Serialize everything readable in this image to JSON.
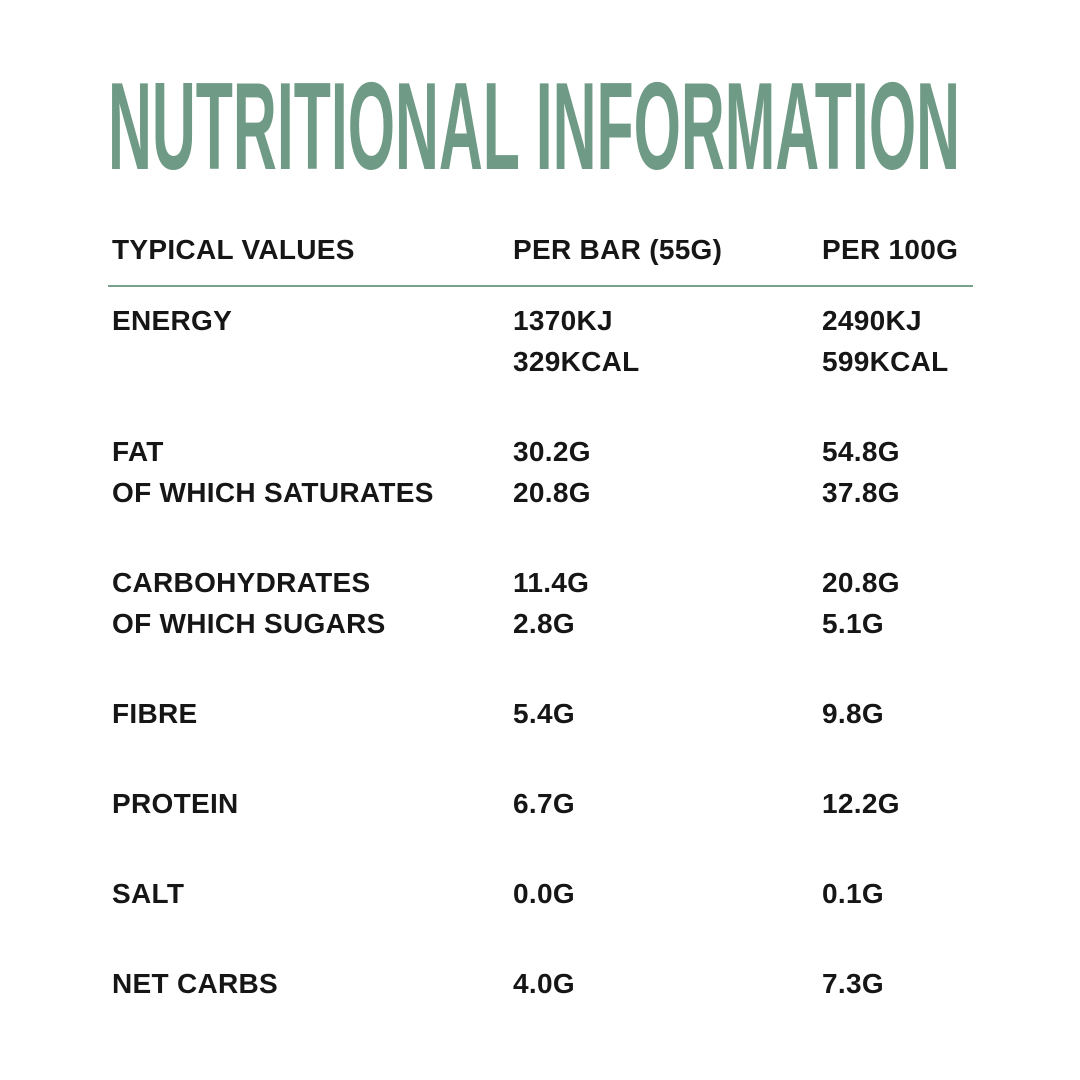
{
  "title": {
    "text": "NUTRITIONAL INFORMATION",
    "color": "#6F9A85"
  },
  "colors": {
    "accent_green": "#6F9A85",
    "divider_green": "#77A18B",
    "text": "#161616",
    "background": "#FFFFFF"
  },
  "table": {
    "headers": [
      "TYPICAL VALUES",
      "PER BAR (55G)",
      "PER 100G"
    ],
    "rows": [
      {
        "label": "ENERGY",
        "per_bar": "1370KJ",
        "per_100g": "2490KJ"
      },
      {
        "label": "",
        "per_bar": "329KCAL",
        "per_100g": "599KCAL"
      },
      {
        "label": "FAT",
        "per_bar": "30.2G",
        "per_100g": "54.8G"
      },
      {
        "label": "OF WHICH SATURATES",
        "per_bar": "20.8G",
        "per_100g": "37.8G"
      },
      {
        "label": "CARBOHYDRATES",
        "per_bar": "11.4G",
        "per_100g": "20.8G"
      },
      {
        "label": "OF WHICH SUGARS",
        "per_bar": "2.8G",
        "per_100g": "5.1G"
      },
      {
        "label": "FIBRE",
        "per_bar": "5.4G",
        "per_100g": "9.8G"
      },
      {
        "label": "PROTEIN",
        "per_bar": "6.7G",
        "per_100g": "12.2G"
      },
      {
        "label": "SALT",
        "per_bar": "0.0G",
        "per_100g": "0.1G"
      },
      {
        "label": "NET CARBS",
        "per_bar": "4.0G",
        "per_100g": "7.3G"
      }
    ]
  }
}
